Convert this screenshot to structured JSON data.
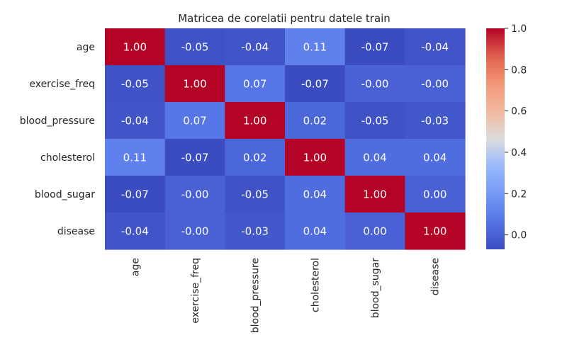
{
  "chart_data": {
    "type": "heatmap",
    "title": "Matricea de corelatii pentru datele train",
    "xlabel": "",
    "ylabel": "",
    "row_labels": [
      "age",
      "exercise_freq",
      "blood_pressure",
      "cholesterol",
      "blood_sugar",
      "disease"
    ],
    "col_labels": [
      "age",
      "exercise_freq",
      "blood_pressure",
      "cholesterol",
      "blood_sugar",
      "disease"
    ],
    "values": [
      [
        1.0,
        -0.05,
        -0.04,
        0.11,
        -0.07,
        -0.04
      ],
      [
        -0.05,
        1.0,
        0.07,
        -0.07,
        -0.0,
        -0.0
      ],
      [
        -0.04,
        0.07,
        1.0,
        0.02,
        -0.05,
        -0.03
      ],
      [
        0.11,
        -0.07,
        0.02,
        1.0,
        0.04,
        0.04
      ],
      [
        -0.07,
        -0.0,
        -0.05,
        0.04,
        1.0,
        0.0
      ],
      [
        -0.04,
        -0.0,
        -0.03,
        0.04,
        0.0,
        1.0
      ]
    ],
    "annotations": [
      [
        "1.00",
        "-0.05",
        "-0.04",
        "0.11",
        "-0.07",
        "-0.04"
      ],
      [
        "-0.05",
        "1.00",
        "0.07",
        "-0.07",
        "-0.00",
        "-0.00"
      ],
      [
        "-0.04",
        "0.07",
        "1.00",
        "0.02",
        "-0.05",
        "-0.03"
      ],
      [
        "0.11",
        "-0.07",
        "0.02",
        "1.00",
        "0.04",
        "0.04"
      ],
      [
        "-0.07",
        "-0.00",
        "-0.05",
        "0.04",
        "1.00",
        "0.00"
      ],
      [
        "-0.04",
        "-0.00",
        "-0.03",
        "0.04",
        "0.00",
        "1.00"
      ]
    ],
    "colormap": "coolwarm",
    "vmin": -0.07,
    "vmax": 1.0,
    "colorbar_ticks": [
      "0.0",
      "0.2",
      "0.4",
      "0.6",
      "0.8",
      "1.0"
    ],
    "colorbar_tick_values": [
      0.0,
      0.2,
      0.4,
      0.6,
      0.8,
      1.0
    ],
    "grid": false
  },
  "colors": {
    "background": "#ffffff",
    "text": "#262626",
    "annotation_text": "#ffffff"
  }
}
